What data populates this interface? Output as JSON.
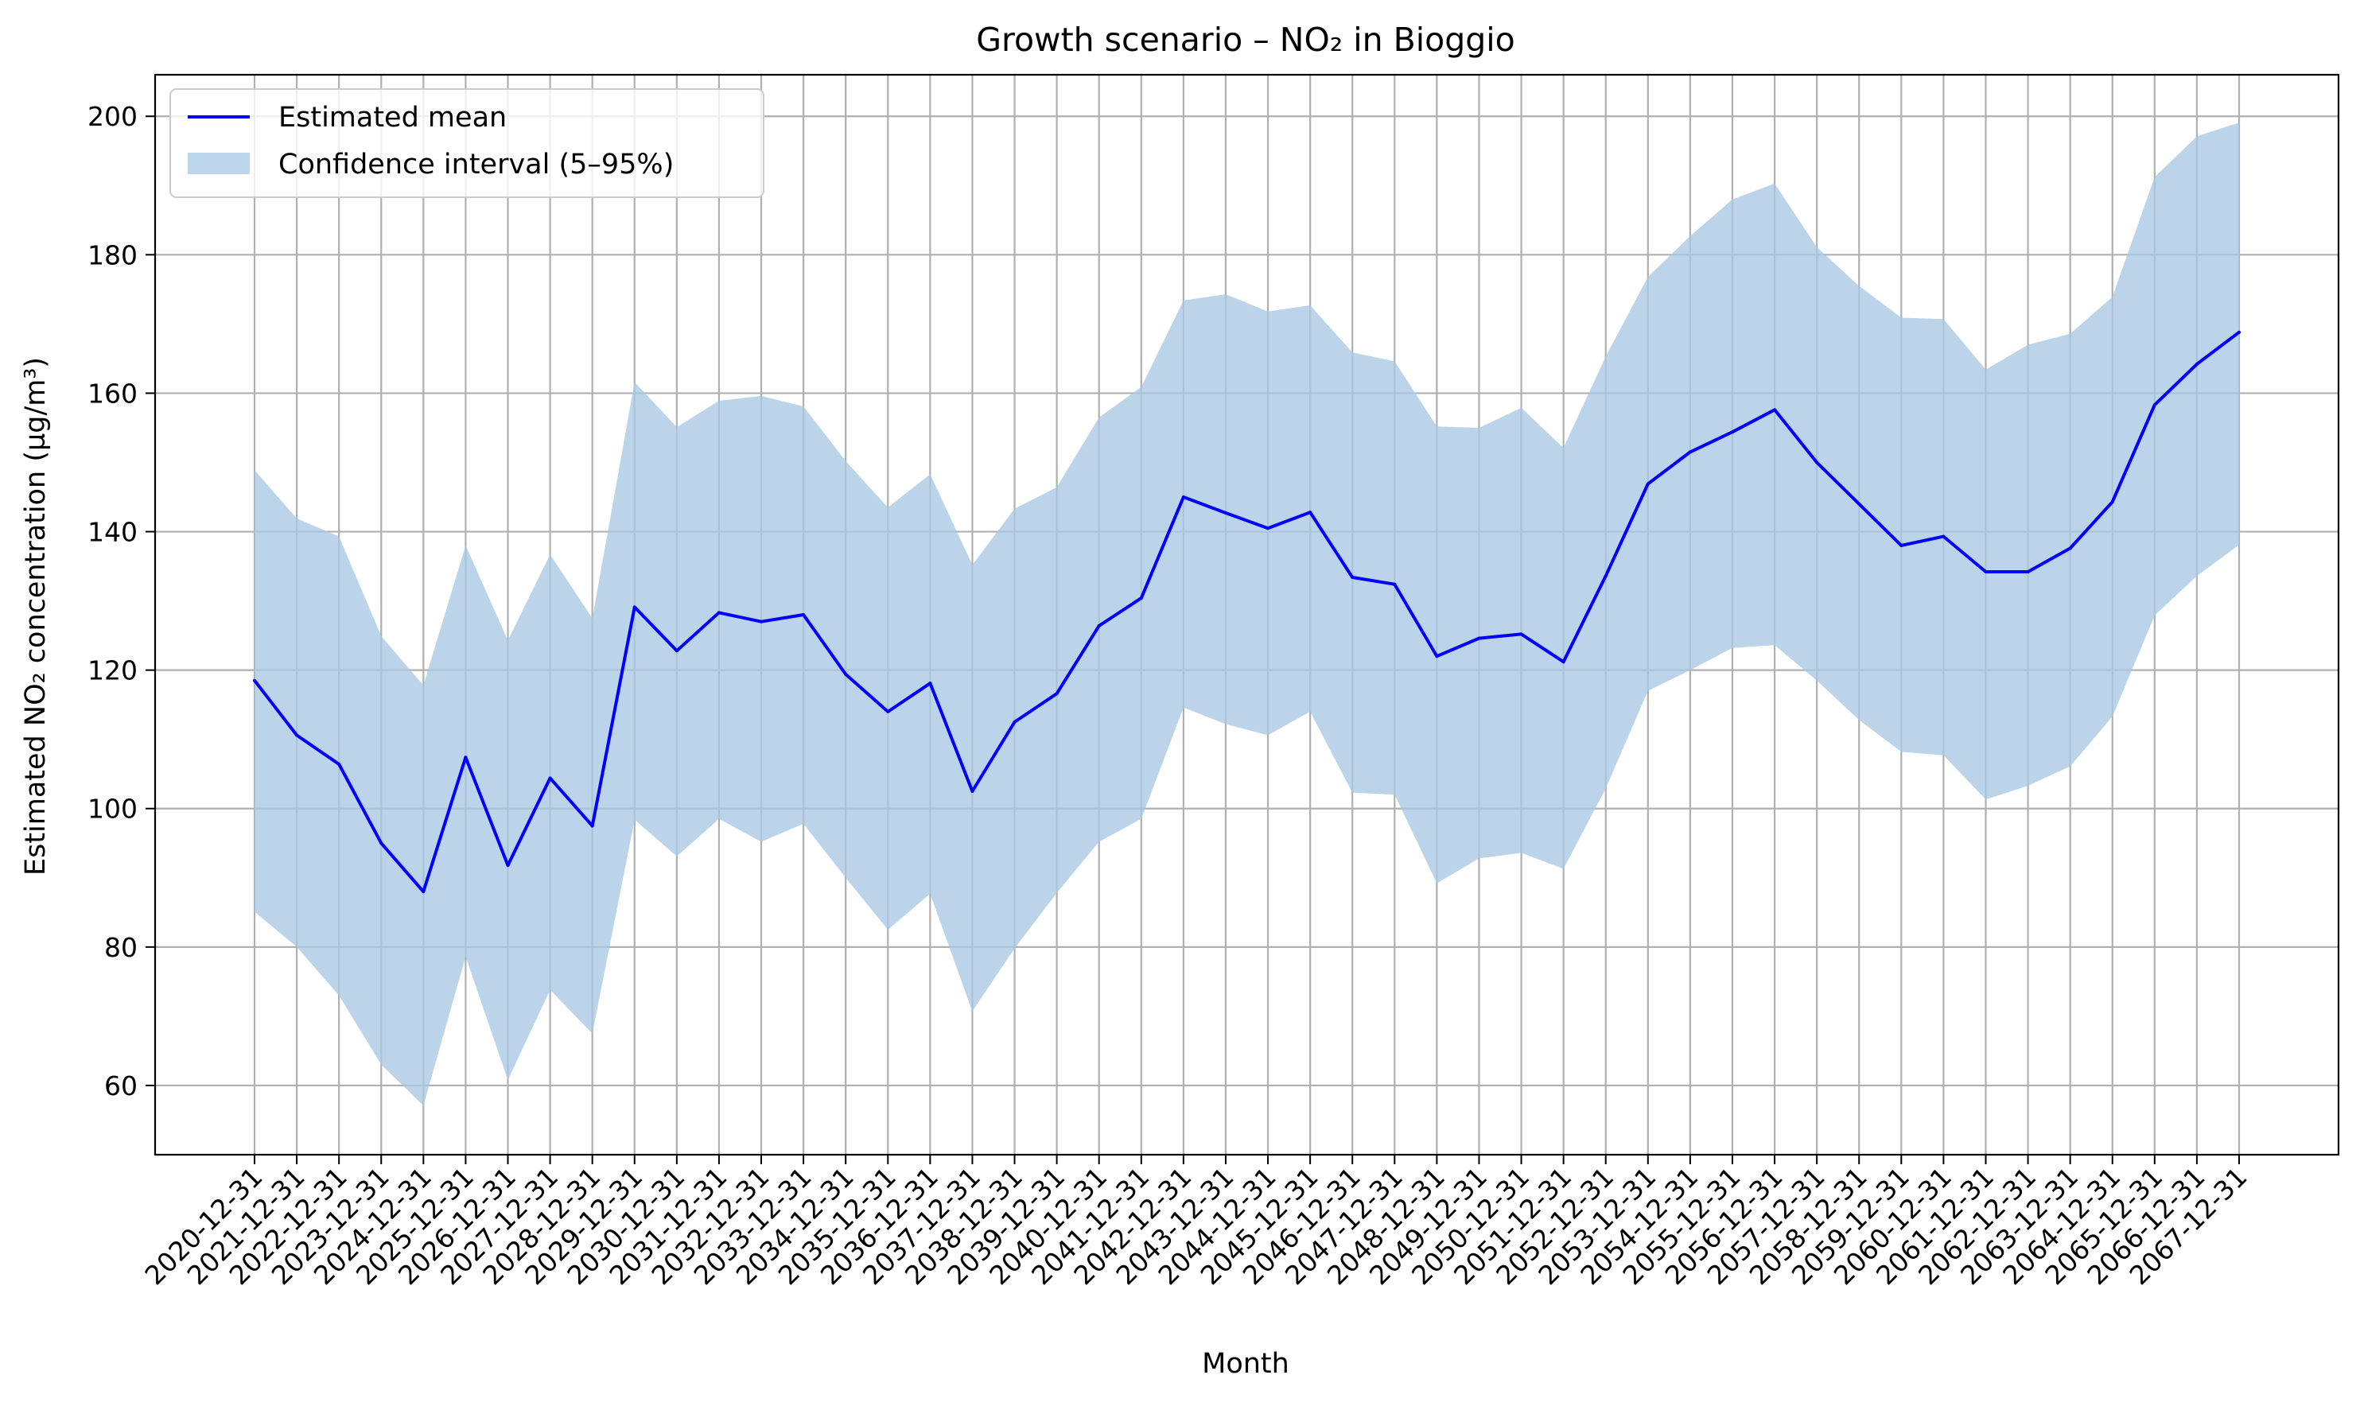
{
  "chart_data": {
    "type": "line",
    "title": "Growth scenario – NO₂ in Bioggio",
    "xlabel": "Month",
    "ylabel": "Estimated NO₂ concentration (µg/m³)",
    "ylim": [
      50,
      206
    ],
    "yticks": [
      60,
      80,
      100,
      120,
      140,
      160,
      180,
      200
    ],
    "grid": true,
    "legend_position": "top-left",
    "x": [
      "2020-12-31",
      "2021-12-31",
      "2022-12-31",
      "2023-12-31",
      "2024-12-31",
      "2025-12-31",
      "2026-12-31",
      "2027-12-31",
      "2028-12-31",
      "2029-12-31",
      "2030-12-31",
      "2031-12-31",
      "2032-12-31",
      "2033-12-31",
      "2034-12-31",
      "2035-12-31",
      "2036-12-31",
      "2037-12-31",
      "2038-12-31",
      "2039-12-31",
      "2040-12-31",
      "2041-12-31",
      "2042-12-31",
      "2043-12-31",
      "2044-12-31",
      "2045-12-31",
      "2046-12-31",
      "2047-12-31",
      "2048-12-31",
      "2049-12-31",
      "2050-12-31",
      "2051-12-31",
      "2052-12-31",
      "2053-12-31",
      "2054-12-31",
      "2055-12-31",
      "2056-12-31",
      "2057-12-31",
      "2058-12-31",
      "2059-12-31",
      "2060-12-31",
      "2061-12-31",
      "2062-12-31",
      "2063-12-31",
      "2064-12-31",
      "2065-12-31",
      "2066-12-31",
      "2067-12-31"
    ],
    "series": [
      {
        "name": "Estimated mean",
        "color": "#0000ff",
        "values": [
          118.5,
          110.6,
          106.4,
          95.0,
          88.0,
          107.4,
          91.8,
          104.4,
          97.5,
          129.1,
          122.8,
          128.3,
          127.0,
          128.0,
          119.4,
          114.0,
          118.1,
          102.5,
          112.5,
          116.6,
          126.4,
          130.4,
          145.0,
          142.7,
          140.5,
          142.8,
          133.4,
          132.4,
          122.0,
          124.6,
          125.2,
          121.2,
          133.6,
          146.9,
          151.5,
          154.4,
          157.6,
          150.0,
          144.0,
          138.0,
          139.3,
          134.2,
          134.2,
          137.6,
          144.3,
          158.3,
          164.2,
          168.8
        ]
      },
      {
        "name": "Confidence interval (5–95%)",
        "type": "area",
        "color": "#a8c8e4",
        "lower": [
          85.1,
          80.0,
          73.0,
          63.0,
          57.1,
          78.6,
          60.8,
          73.8,
          67.5,
          98.4,
          93.1,
          98.5,
          95.2,
          97.8,
          90.0,
          82.5,
          87.7,
          70.7,
          79.8,
          87.8,
          95.2,
          98.5,
          114.6,
          112.2,
          110.6,
          114.0,
          102.3,
          102.0,
          89.2,
          92.8,
          93.6,
          91.3,
          102.9,
          117.0,
          120.0,
          123.2,
          123.6,
          118.5,
          112.8,
          108.2,
          107.7,
          101.3,
          103.3,
          106.1,
          113.3,
          127.9,
          133.6,
          138.1
        ],
        "upper": [
          148.9,
          141.9,
          139.3,
          124.9,
          117.8,
          138.0,
          124.3,
          136.7,
          127.5,
          161.6,
          155.1,
          158.9,
          159.6,
          158.1,
          150.2,
          143.5,
          148.3,
          135.2,
          143.3,
          146.4,
          156.5,
          160.9,
          173.4,
          174.3,
          171.8,
          172.7,
          165.9,
          164.6,
          155.2,
          155.0,
          157.9,
          152.1,
          165.3,
          176.8,
          182.7,
          188.0,
          190.3,
          181.1,
          175.5,
          170.9,
          170.7,
          163.4,
          167.0,
          168.6,
          173.9,
          191.2,
          197.1,
          199.1
        ]
      }
    ]
  }
}
